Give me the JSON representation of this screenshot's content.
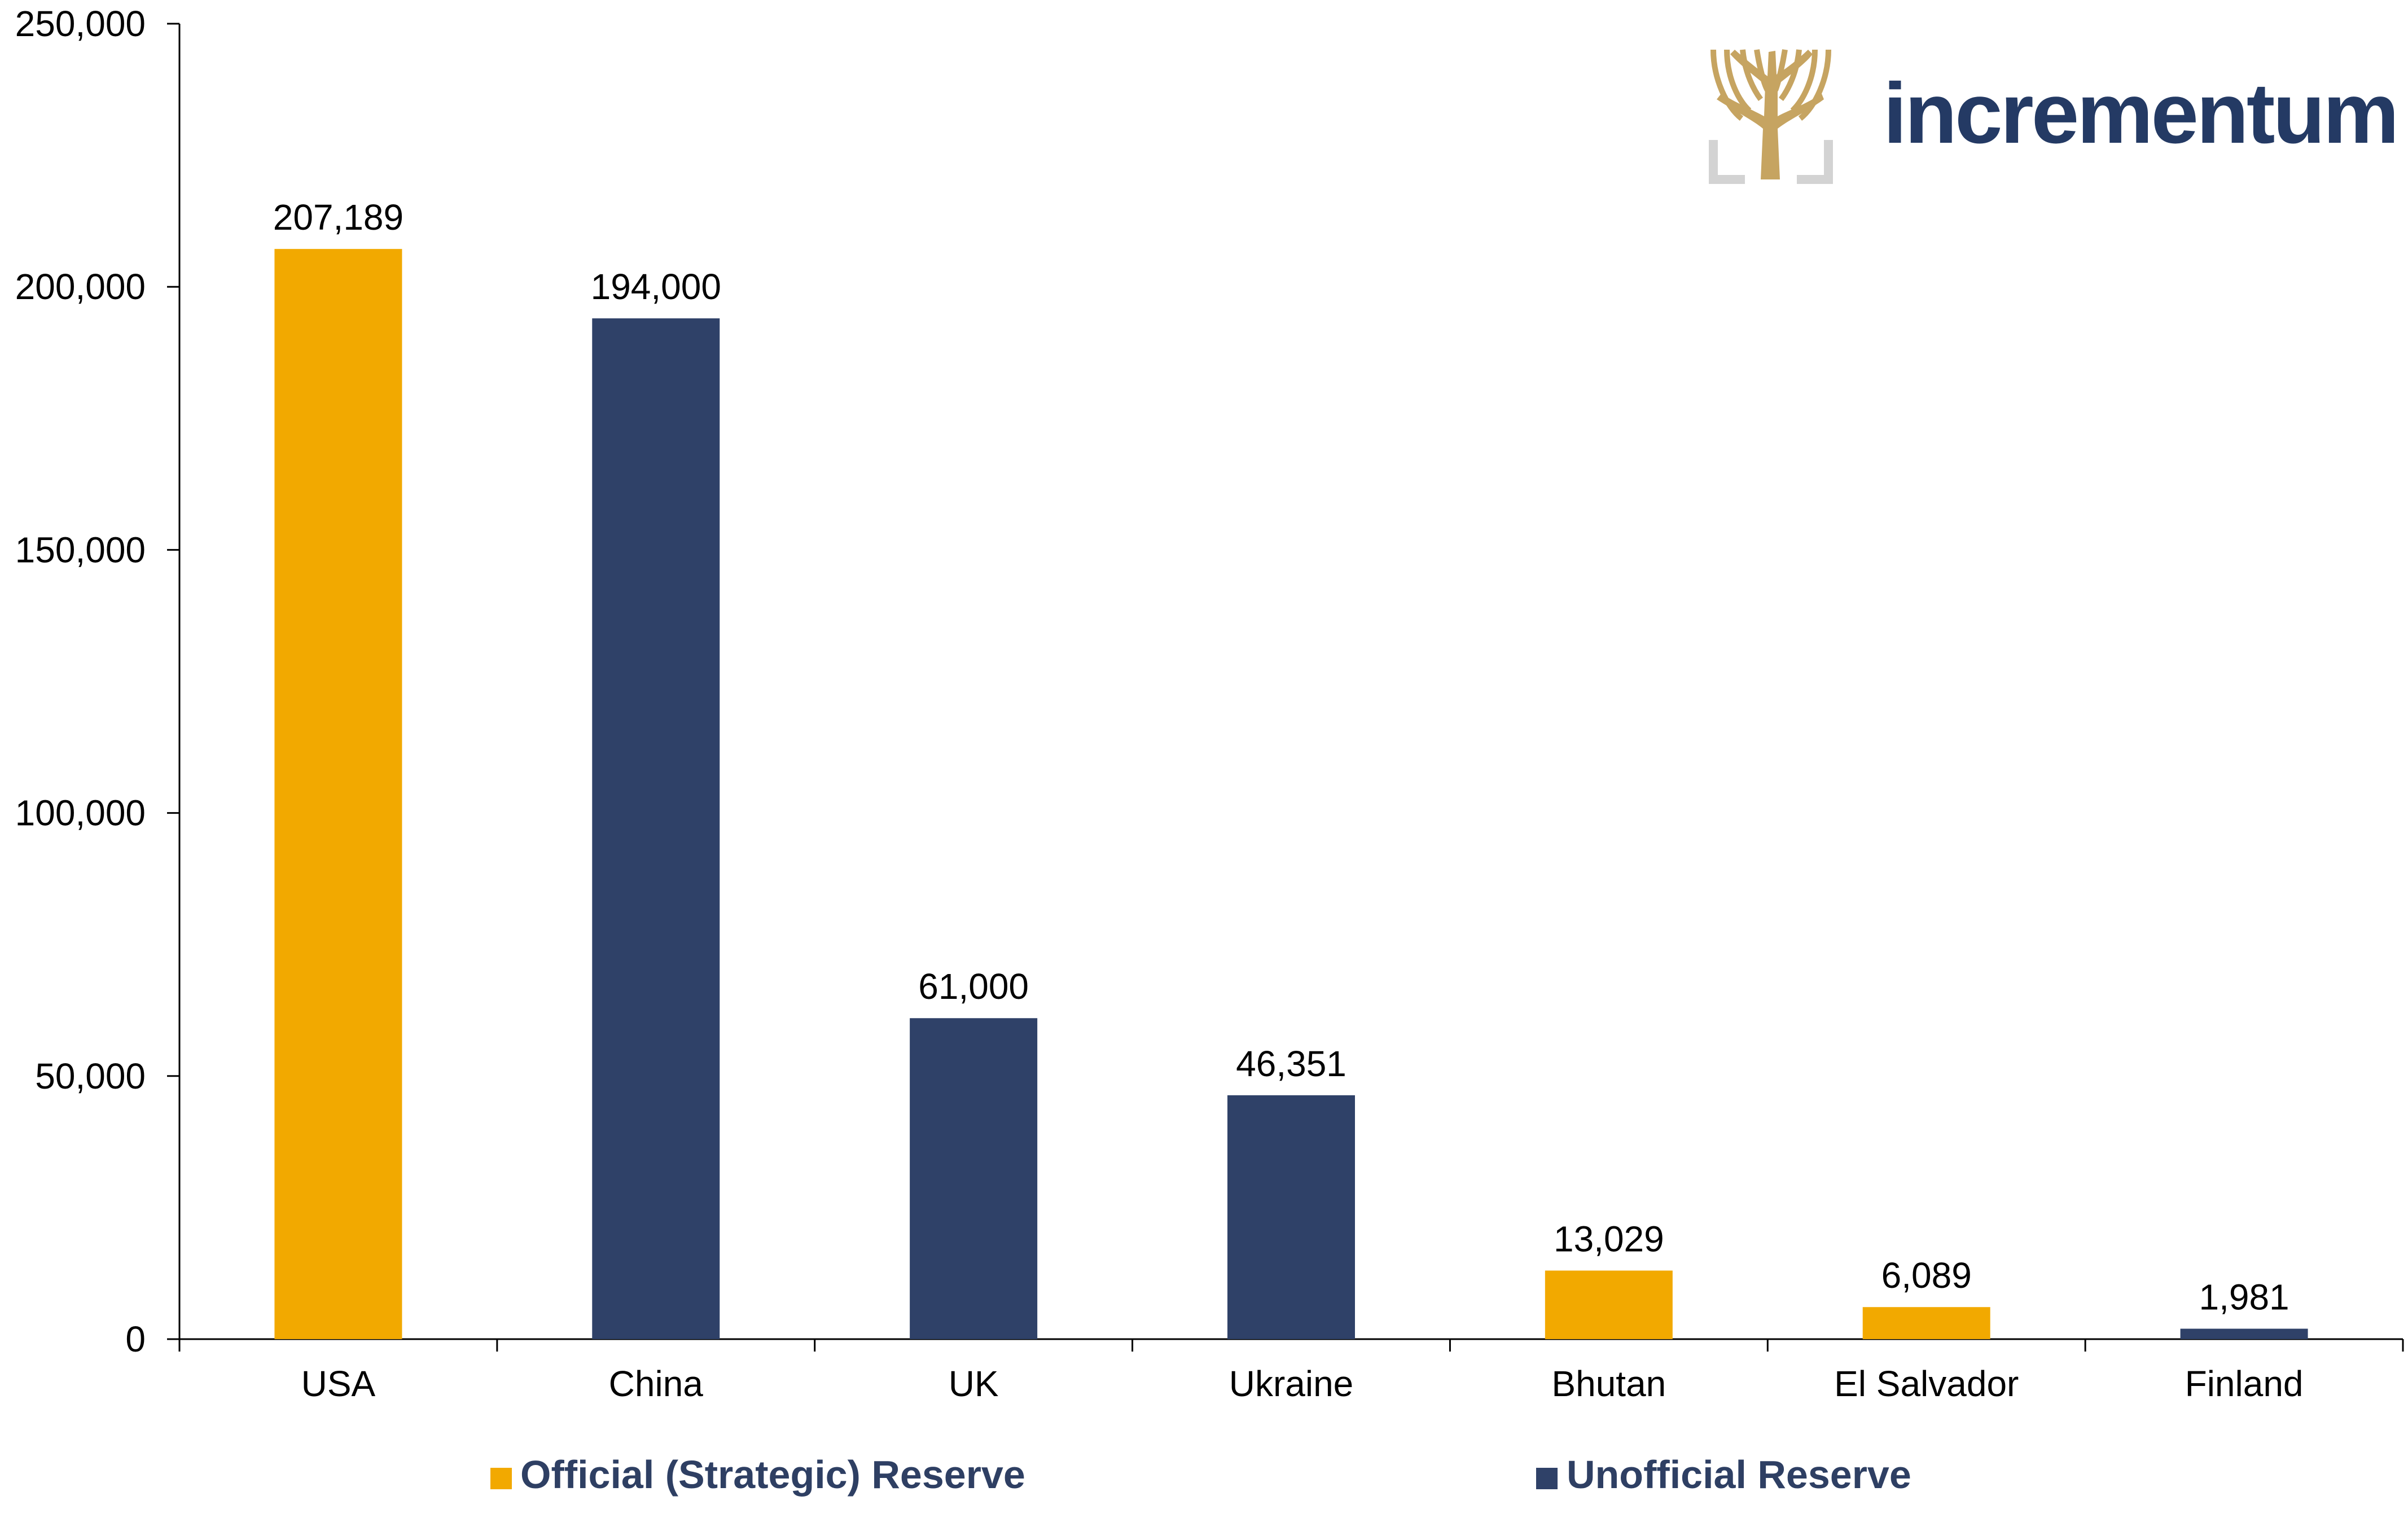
{
  "logo": {
    "wordmark": "incrementum",
    "icon": "tree-logo-icon"
  },
  "colors": {
    "official": "#F2A900",
    "unofficial": "#2F4168",
    "logo_gold": "#C6A461",
    "logo_frame": "#D3D3D3",
    "logo_text": "#243A64"
  },
  "chart_data": {
    "type": "bar",
    "title": "",
    "xlabel": "",
    "ylabel": "",
    "ylim": [
      0,
      250000
    ],
    "yticks": [
      0,
      50000,
      100000,
      150000,
      200000,
      250000
    ],
    "ytick_labels": [
      "0",
      "50,000",
      "100,000",
      "150,000",
      "200,000",
      "250,000"
    ],
    "categories": [
      "USA",
      "China",
      "UK",
      "Ukraine",
      "Bhutan",
      "El Salvador",
      "Finland"
    ],
    "values": [
      207189,
      194000,
      61000,
      46351,
      13029,
      6089,
      1981
    ],
    "value_labels": [
      "207,189",
      "194,000",
      "61,000",
      "46,351",
      "13,029",
      "6,089",
      "1,981"
    ],
    "bar_series": [
      "official",
      "unofficial",
      "unofficial",
      "unofficial",
      "official",
      "official",
      "unofficial"
    ],
    "series": [
      {
        "key": "official",
        "name": "Official (Strategic) Reserve"
      },
      {
        "key": "unofficial",
        "name": "Unofficial Reserve"
      }
    ],
    "legend_position": "bottom",
    "grid": false
  }
}
